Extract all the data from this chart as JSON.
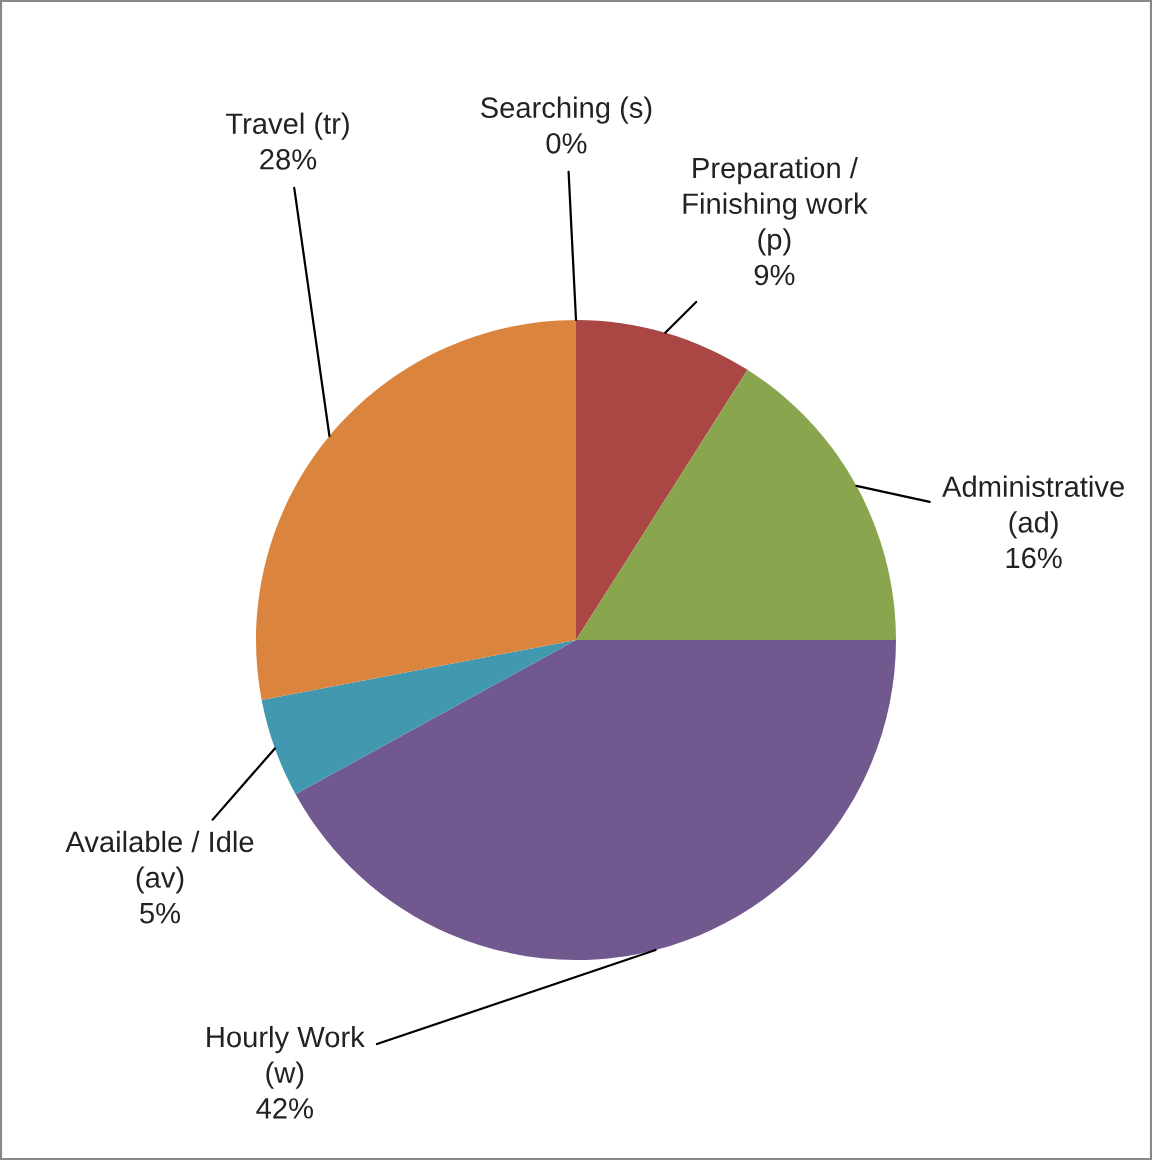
{
  "chart_data": {
    "type": "pie",
    "categories": [
      "Searching (s)",
      "Preparation /\nFinishing work\n(p)",
      "Administrative\n(ad)",
      "Hourly Work\n(w)",
      "Available / Idle\n(av)",
      "Travel (tr)"
    ],
    "values": [
      0,
      9,
      16,
      42,
      5,
      28
    ],
    "value_labels": [
      "0%",
      "9%",
      "16%",
      "42%",
      "5%",
      "28%"
    ],
    "colors": [
      "#4572a7",
      "#aa4643",
      "#89a54e",
      "#71588f",
      "#4198af",
      "#db843d"
    ],
    "legend": false
  }
}
